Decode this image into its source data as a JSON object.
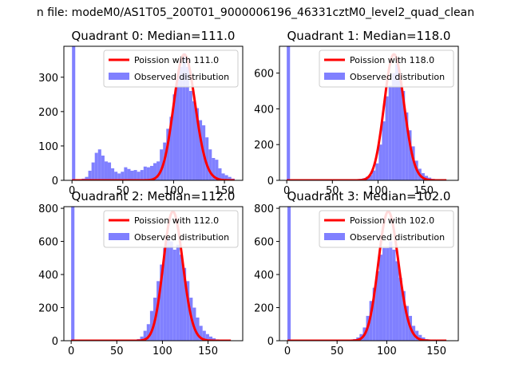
{
  "figure": {
    "suptitle": "n file: modeM0/AS1T05_200T01_9000006196_46331cztM0_level2_quad_clean"
  },
  "chart_data": [
    {
      "type": "bar",
      "title": "Quadrant 0: Median=111.0",
      "xlim": [
        -8,
        168
      ],
      "ylim": [
        0,
        390
      ],
      "xticks": [
        0,
        50,
        100,
        150
      ],
      "yticks": [
        0,
        100,
        200,
        300
      ],
      "legend": {
        "position": "top-right",
        "entries": [
          "Poission with 111.0",
          "Observed distribution"
        ]
      },
      "colors": {
        "histogram": "#8080ff",
        "poisson": "#ff0000"
      },
      "histogram": {
        "name": "Observed distribution",
        "bin_width": 3.2,
        "bins": [
          {
            "x": 0,
            "y": 390
          },
          {
            "x": 3.2,
            "y": 0
          },
          {
            "x": 6.4,
            "y": 2
          },
          {
            "x": 9.6,
            "y": 5
          },
          {
            "x": 12.8,
            "y": 10
          },
          {
            "x": 16,
            "y": 28
          },
          {
            "x": 19.2,
            "y": 52
          },
          {
            "x": 22.4,
            "y": 80
          },
          {
            "x": 25.6,
            "y": 90
          },
          {
            "x": 28.8,
            "y": 72
          },
          {
            "x": 32,
            "y": 55
          },
          {
            "x": 35.2,
            "y": 52
          },
          {
            "x": 38.4,
            "y": 35
          },
          {
            "x": 41.6,
            "y": 25
          },
          {
            "x": 44.8,
            "y": 20
          },
          {
            "x": 48,
            "y": 25
          },
          {
            "x": 51.2,
            "y": 38
          },
          {
            "x": 54.4,
            "y": 33
          },
          {
            "x": 57.6,
            "y": 28
          },
          {
            "x": 60.8,
            "y": 30
          },
          {
            "x": 64,
            "y": 25
          },
          {
            "x": 67.2,
            "y": 30
          },
          {
            "x": 70.4,
            "y": 40
          },
          {
            "x": 73.6,
            "y": 38
          },
          {
            "x": 76.8,
            "y": 42
          },
          {
            "x": 80,
            "y": 50
          },
          {
            "x": 83.2,
            "y": 55
          },
          {
            "x": 86.4,
            "y": 90
          },
          {
            "x": 89.6,
            "y": 110
          },
          {
            "x": 92.8,
            "y": 150
          },
          {
            "x": 96,
            "y": 185
          },
          {
            "x": 99.2,
            "y": 250
          },
          {
            "x": 102.4,
            "y": 300
          },
          {
            "x": 105.6,
            "y": 330
          },
          {
            "x": 108.8,
            "y": 370
          },
          {
            "x": 112,
            "y": 330
          },
          {
            "x": 115.2,
            "y": 260
          },
          {
            "x": 118.4,
            "y": 230
          },
          {
            "x": 121.6,
            "y": 210
          },
          {
            "x": 124.8,
            "y": 175
          },
          {
            "x": 128,
            "y": 160
          },
          {
            "x": 131.2,
            "y": 125
          },
          {
            "x": 134.4,
            "y": 90
          },
          {
            "x": 137.6,
            "y": 65
          },
          {
            "x": 140.8,
            "y": 60
          },
          {
            "x": 144,
            "y": 35
          },
          {
            "x": 147.2,
            "y": 20
          },
          {
            "x": 150.4,
            "y": 15
          },
          {
            "x": 153.6,
            "y": 10
          },
          {
            "x": 156.8,
            "y": 5
          }
        ]
      },
      "poisson": {
        "name": "Poission with 111.0",
        "mean": 111.0,
        "x_range": [
          0,
          160
        ],
        "peak": 366
      }
    },
    {
      "type": "bar",
      "title": "Quadrant 1: Median=118.0",
      "xlim": [
        -8,
        188
      ],
      "ylim": [
        0,
        750
      ],
      "xticks": [
        0,
        50,
        100,
        150
      ],
      "yticks": [
        0,
        200,
        400,
        600
      ],
      "legend": {
        "position": "top-right",
        "entries": [
          "Poission with 118.0",
          "Observed distribution"
        ]
      },
      "colors": {
        "histogram": "#8080ff",
        "poisson": "#ff0000"
      },
      "histogram": {
        "name": "Observed distribution",
        "bin_width": 3.6,
        "bins": [
          {
            "x": 0,
            "y": 750
          },
          {
            "x": 72,
            "y": 3
          },
          {
            "x": 75.6,
            "y": 5
          },
          {
            "x": 79.2,
            "y": 8
          },
          {
            "x": 82.8,
            "y": 12
          },
          {
            "x": 86.4,
            "y": 20
          },
          {
            "x": 90,
            "y": 30
          },
          {
            "x": 93.6,
            "y": 55
          },
          {
            "x": 97.2,
            "y": 95
          },
          {
            "x": 100.8,
            "y": 200
          },
          {
            "x": 104.4,
            "y": 330
          },
          {
            "x": 108,
            "y": 470
          },
          {
            "x": 111.6,
            "y": 530
          },
          {
            "x": 115.2,
            "y": 600
          },
          {
            "x": 118.8,
            "y": 650
          },
          {
            "x": 122.4,
            "y": 590
          },
          {
            "x": 126,
            "y": 500
          },
          {
            "x": 129.6,
            "y": 380
          },
          {
            "x": 133.2,
            "y": 280
          },
          {
            "x": 136.8,
            "y": 190
          },
          {
            "x": 140.4,
            "y": 110
          },
          {
            "x": 144,
            "y": 65
          },
          {
            "x": 147.6,
            "y": 40
          },
          {
            "x": 151.2,
            "y": 25
          },
          {
            "x": 154.8,
            "y": 15
          },
          {
            "x": 158.4,
            "y": 8
          },
          {
            "x": 162,
            "y": 5
          }
        ]
      },
      "poisson": {
        "name": "Poission with 118.0",
        "mean": 118.0,
        "x_range": [
          0,
          175
        ],
        "peak": 705
      }
    },
    {
      "type": "bar",
      "title": "Quadrant 2: Median=112.0",
      "xlim": [
        -8,
        188
      ],
      "ylim": [
        0,
        810
      ],
      "xticks": [
        0,
        50,
        100,
        150
      ],
      "yticks": [
        0,
        200,
        400,
        600,
        800
      ],
      "legend": {
        "position": "top-right",
        "entries": [
          "Poission with 112.0",
          "Observed distribution"
        ]
      },
      "colors": {
        "histogram": "#8080ff",
        "poisson": "#ff0000"
      },
      "histogram": {
        "name": "Observed distribution",
        "bin_width": 3.6,
        "bins": [
          {
            "x": 0,
            "y": 810
          },
          {
            "x": 64.8,
            "y": 3
          },
          {
            "x": 68.4,
            "y": 5
          },
          {
            "x": 72,
            "y": 10
          },
          {
            "x": 75.6,
            "y": 25
          },
          {
            "x": 79.2,
            "y": 60
          },
          {
            "x": 82.8,
            "y": 100
          },
          {
            "x": 86.4,
            "y": 180
          },
          {
            "x": 90,
            "y": 260
          },
          {
            "x": 93.6,
            "y": 360
          },
          {
            "x": 97.2,
            "y": 460
          },
          {
            "x": 100.8,
            "y": 560
          },
          {
            "x": 104.4,
            "y": 620
          },
          {
            "x": 108,
            "y": 600
          },
          {
            "x": 111.6,
            "y": 550
          },
          {
            "x": 115.2,
            "y": 580
          },
          {
            "x": 118.8,
            "y": 520
          },
          {
            "x": 122.4,
            "y": 440
          },
          {
            "x": 126,
            "y": 360
          },
          {
            "x": 129.6,
            "y": 260
          },
          {
            "x": 133.2,
            "y": 200
          },
          {
            "x": 136.8,
            "y": 140
          },
          {
            "x": 140.4,
            "y": 90
          },
          {
            "x": 144,
            "y": 60
          },
          {
            "x": 147.6,
            "y": 40
          },
          {
            "x": 151.2,
            "y": 25
          },
          {
            "x": 154.8,
            "y": 15
          },
          {
            "x": 158.4,
            "y": 8
          }
        ]
      },
      "poisson": {
        "name": "Poission with 112.0",
        "mean": 112.0,
        "x_range": [
          0,
          175
        ],
        "peak": 780
      }
    },
    {
      "type": "bar",
      "title": "Quadrant 3: Median=102.0",
      "xlim": [
        -8,
        172
      ],
      "ylim": [
        0,
        810
      ],
      "xticks": [
        0,
        50,
        100,
        150
      ],
      "yticks": [
        0,
        200,
        400,
        600,
        800
      ],
      "legend": {
        "position": "top-right",
        "entries": [
          "Poission with 102.0",
          "Observed distribution"
        ]
      },
      "colors": {
        "histogram": "#8080ff",
        "poisson": "#ff0000"
      },
      "histogram": {
        "name": "Observed distribution",
        "bin_width": 3.3,
        "bins": [
          {
            "x": 0,
            "y": 810
          },
          {
            "x": 23.1,
            "y": 3
          },
          {
            "x": 59.4,
            "y": 3
          },
          {
            "x": 62.7,
            "y": 5
          },
          {
            "x": 66,
            "y": 10
          },
          {
            "x": 69.3,
            "y": 20
          },
          {
            "x": 72.6,
            "y": 40
          },
          {
            "x": 75.9,
            "y": 80
          },
          {
            "x": 79.2,
            "y": 150
          },
          {
            "x": 82.5,
            "y": 240
          },
          {
            "x": 85.8,
            "y": 320
          },
          {
            "x": 89.1,
            "y": 420
          },
          {
            "x": 92.4,
            "y": 520
          },
          {
            "x": 95.7,
            "y": 560
          },
          {
            "x": 99,
            "y": 560
          },
          {
            "x": 102.3,
            "y": 600
          },
          {
            "x": 105.6,
            "y": 550
          },
          {
            "x": 108.9,
            "y": 480
          },
          {
            "x": 112.2,
            "y": 380
          },
          {
            "x": 115.5,
            "y": 300
          },
          {
            "x": 118.8,
            "y": 210
          },
          {
            "x": 122.1,
            "y": 150
          },
          {
            "x": 125.4,
            "y": 90
          },
          {
            "x": 128.7,
            "y": 60
          },
          {
            "x": 132,
            "y": 35
          },
          {
            "x": 135.3,
            "y": 20
          },
          {
            "x": 138.6,
            "y": 10
          },
          {
            "x": 141.9,
            "y": 5
          }
        ]
      },
      "poisson": {
        "name": "Poission with 102.0",
        "mean": 102.0,
        "x_range": [
          0,
          160
        ],
        "peak": 780
      }
    }
  ]
}
